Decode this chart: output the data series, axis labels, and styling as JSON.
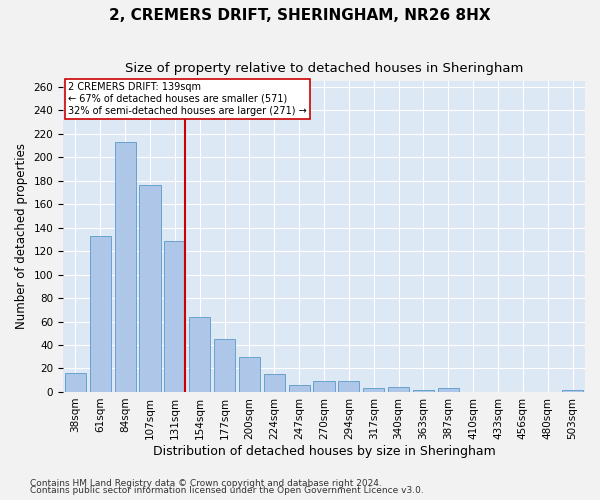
{
  "title1": "2, CREMERS DRIFT, SHERINGHAM, NR26 8HX",
  "title2": "Size of property relative to detached houses in Sheringham",
  "xlabel": "Distribution of detached houses by size in Sheringham",
  "ylabel": "Number of detached properties",
  "bins": [
    "38sqm",
    "61sqm",
    "84sqm",
    "107sqm",
    "131sqm",
    "154sqm",
    "177sqm",
    "200sqm",
    "224sqm",
    "247sqm",
    "270sqm",
    "294sqm",
    "317sqm",
    "340sqm",
    "363sqm",
    "387sqm",
    "410sqm",
    "433sqm",
    "456sqm",
    "480sqm",
    "503sqm"
  ],
  "bar_heights": [
    16,
    133,
    213,
    176,
    129,
    64,
    45,
    30,
    15,
    6,
    9,
    9,
    3,
    4,
    2,
    3,
    0,
    0,
    0,
    0,
    2
  ],
  "bar_color": "#aec6e8",
  "bar_edge_color": "#5a9aca",
  "annotation_title": "2 CREMERS DRIFT: 139sqm",
  "annotation_line1": "← 67% of detached houses are smaller (571)",
  "annotation_line2": "32% of semi-detached houses are larger (271) →",
  "vline_color": "#cc0000",
  "annotation_box_color": "#ffffff",
  "annotation_box_edge": "#cc0000",
  "ylim": [
    0,
    265
  ],
  "yticks": [
    0,
    20,
    40,
    60,
    80,
    100,
    120,
    140,
    160,
    180,
    200,
    220,
    240,
    260
  ],
  "footer1": "Contains HM Land Registry data © Crown copyright and database right 2024.",
  "footer2": "Contains public sector information licensed under the Open Government Licence v3.0.",
  "background_color": "#dde8f5",
  "grid_color": "#ffffff",
  "fig_background": "#f2f2f2",
  "title1_fontsize": 11,
  "title2_fontsize": 9.5,
  "xlabel_fontsize": 9,
  "ylabel_fontsize": 8.5,
  "tick_fontsize": 7.5,
  "footer_fontsize": 6.5,
  "vline_x": 4.39
}
